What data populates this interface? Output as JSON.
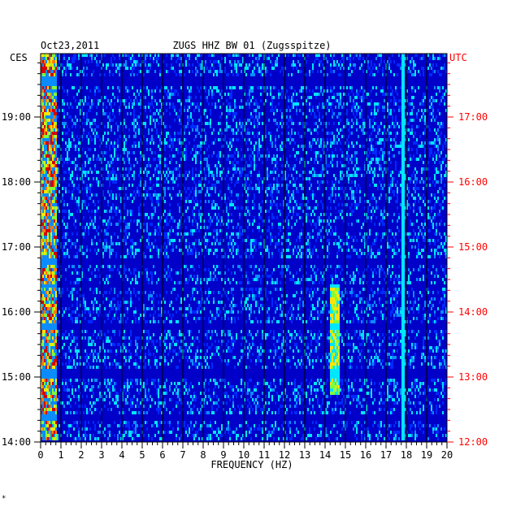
{
  "header": {
    "date": "Oct23,2011",
    "station": "ZUGS HHZ BW 01 (Zugsspitze)"
  },
  "chart_data": {
    "type": "heatmap",
    "title": "ZUGS HHZ BW 01 (Zugsspitze)",
    "xlabel": "FREQUENCY (HZ)",
    "xlim": [
      0,
      20
    ],
    "x_ticks": [
      "0",
      "1",
      "2",
      "3",
      "4",
      "5",
      "6",
      "7",
      "8",
      "9",
      "10",
      "11",
      "12",
      "13",
      "14",
      "15",
      "16",
      "17",
      "18",
      "19",
      "20"
    ],
    "left_axis_label": "CES",
    "right_axis_label": "UTC",
    "left_ticks": [
      "19:00",
      "18:00",
      "17:00",
      "16:00",
      "15:00",
      "14:00"
    ],
    "right_ticks": [
      "17:00",
      "16:00",
      "15:00",
      "14:00",
      "13:00",
      "12:00"
    ],
    "colors": {
      "background": "#0000c8",
      "noise_low": "#0028ff",
      "noise_mid": "#0a8cff",
      "noise_high": "#00e6ff",
      "green": "#7fff3a",
      "yellow": "#ffe600",
      "orange": "#ff7a00",
      "red": "#d40000",
      "grid": "#000000",
      "left_labels": "#000000",
      "right_labels": "#ff0000"
    },
    "features": [
      {
        "description": "strong energy near 0-0.8 Hz band throughout"
      },
      {
        "description": "tremor band near 14.4 Hz between 14:45 and 16:20 CES"
      },
      {
        "description": "narrow line near 17.8 Hz"
      },
      {
        "description": "data gaps (dark rows) near 16:45, 16:25, 15:45, 15:05, 14:25 CES"
      }
    ]
  },
  "footer": {
    "mark": "*"
  }
}
